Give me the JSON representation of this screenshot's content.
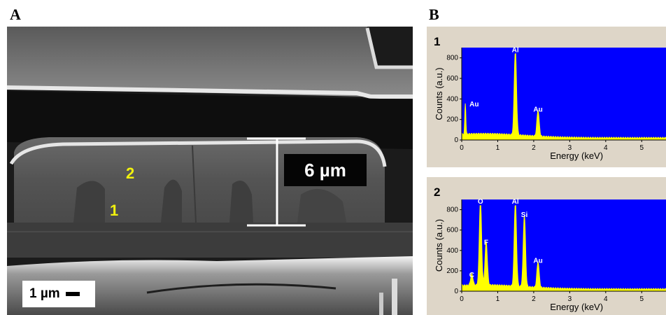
{
  "panel_a": {
    "letter": "A",
    "region_labels": {
      "first": "1",
      "second": "2"
    },
    "thickness_label": "6 µm",
    "scale_bar_label": "1 µm"
  },
  "panel_b": {
    "letter": "B",
    "colors": {
      "background": "#0000ff",
      "spectrum": "#ffff00",
      "panel": "#ded6c8"
    }
  },
  "chart_data": [
    {
      "type": "area",
      "panel_number": "1",
      "xlabel": "Energy (keV)",
      "ylabel": "Counts (a.u.)",
      "xlim": [
        0,
        5.5
      ],
      "ylim": [
        0,
        900
      ],
      "xticks": [
        "0",
        "1",
        "2",
        "3",
        "4",
        "5"
      ],
      "yticks": [
        "0",
        "200",
        "400",
        "600",
        "800"
      ],
      "peaks": [
        {
          "label": "Au",
          "energy": 0.1,
          "height": 300
        },
        {
          "label": "Al",
          "energy": 1.49,
          "height": 830
        },
        {
          "label": "Au",
          "energy": 2.12,
          "height": 250
        }
      ],
      "baseline": 40
    },
    {
      "type": "area",
      "panel_number": "2",
      "xlabel": "Energy (keV)",
      "ylabel": "Counts (a.u.)",
      "xlim": [
        0,
        5.5
      ],
      "ylim": [
        0,
        900
      ],
      "xticks": [
        "0",
        "1",
        "2",
        "3",
        "4",
        "5"
      ],
      "yticks": [
        "0",
        "200",
        "400",
        "600",
        "800"
      ],
      "peaks": [
        {
          "label": "C",
          "energy": 0.28,
          "height": 110
        },
        {
          "label": "O",
          "energy": 0.52,
          "height": 830
        },
        {
          "label": "F",
          "energy": 0.68,
          "height": 430
        },
        {
          "label": "Al",
          "energy": 1.49,
          "height": 830
        },
        {
          "label": "Si",
          "energy": 1.74,
          "height": 700
        },
        {
          "label": "Au",
          "energy": 2.12,
          "height": 250
        }
      ],
      "baseline": 40
    }
  ]
}
